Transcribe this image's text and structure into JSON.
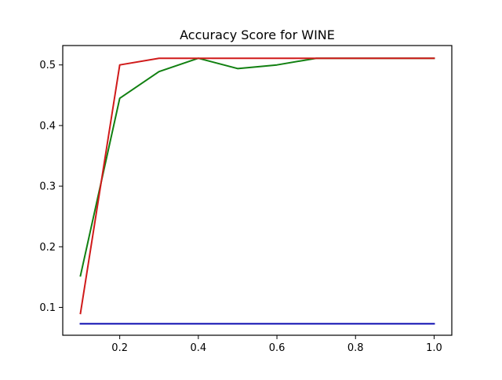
{
  "chart_data": {
    "type": "line",
    "title": "Accuracy Score for WINE",
    "xlabel": "",
    "ylabel": "",
    "xlim": [
      0.055,
      1.045
    ],
    "ylim": [
      0.054,
      0.532
    ],
    "x_ticks": [
      0.2,
      0.4,
      0.6,
      0.8,
      1.0
    ],
    "x_tick_labels": [
      "0.2",
      "0.4",
      "0.6",
      "0.8",
      "1.0"
    ],
    "y_ticks": [
      0.1,
      0.2,
      0.3,
      0.4,
      0.5
    ],
    "y_tick_labels": [
      "0.1",
      "0.2",
      "0.3",
      "0.4",
      "0.5"
    ],
    "grid": false,
    "legend": false,
    "x": [
      0.1,
      0.2,
      0.3,
      0.4,
      0.5,
      0.6,
      0.7,
      0.8,
      0.9,
      1.0
    ],
    "series": [
      {
        "color": "#0a0ab0",
        "values": [
          0.073,
          0.073,
          0.073,
          0.073,
          0.073,
          0.073,
          0.073,
          0.073,
          0.073,
          0.073
        ]
      },
      {
        "color": "#118011",
        "values": [
          0.152,
          0.445,
          0.489,
          0.511,
          0.494,
          0.5,
          0.511,
          0.511,
          0.511,
          0.511
        ]
      },
      {
        "color": "#d01a1a",
        "values": [
          0.09,
          0.5,
          0.511,
          0.511,
          0.511,
          0.511,
          0.511,
          0.511,
          0.511,
          0.511
        ]
      }
    ]
  }
}
